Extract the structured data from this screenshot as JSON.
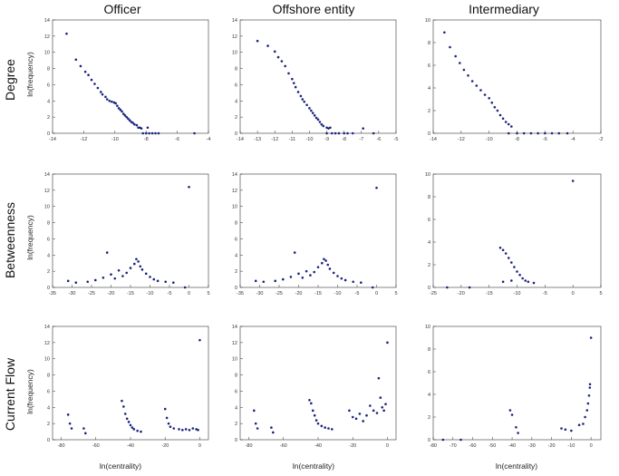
{
  "figure": {
    "columns": [
      "Officer",
      "Offshore entity",
      "Intermediary"
    ],
    "rows": [
      "Degree",
      "Betweenness",
      "Current Flow"
    ],
    "ylabel": "ln(frequency)",
    "xlabel": "ln(centrality)"
  },
  "chart_data": [
    {
      "id": "officer-degree",
      "type": "scatter",
      "title": "Officer / Degree",
      "xlim": [
        -14,
        -4
      ],
      "ylim": [
        0,
        14
      ],
      "xticks": [
        -14,
        -12,
        -10,
        -8,
        -6,
        -4
      ],
      "yticks": [
        0,
        2,
        4,
        6,
        8,
        10,
        12,
        14
      ],
      "points": [
        [
          -13.1,
          12.3
        ],
        [
          -12.5,
          9.1
        ],
        [
          -12.2,
          8.3
        ],
        [
          -11.9,
          7.6
        ],
        [
          -11.7,
          7.2
        ],
        [
          -11.5,
          6.6
        ],
        [
          -11.3,
          6.1
        ],
        [
          -11.1,
          5.6
        ],
        [
          -10.9,
          5.1
        ],
        [
          -10.8,
          4.8
        ],
        [
          -10.6,
          4.5
        ],
        [
          -10.5,
          4.2
        ],
        [
          -10.35,
          4.0
        ],
        [
          -10.2,
          3.9
        ],
        [
          -10.05,
          3.8
        ],
        [
          -9.95,
          3.7
        ],
        [
          -9.85,
          3.4
        ],
        [
          -9.75,
          3.1
        ],
        [
          -9.65,
          2.9
        ],
        [
          -9.55,
          2.7
        ],
        [
          -9.45,
          2.4
        ],
        [
          -9.35,
          2.2
        ],
        [
          -9.25,
          2.0
        ],
        [
          -9.15,
          1.8
        ],
        [
          -9.05,
          1.6
        ],
        [
          -8.95,
          1.4
        ],
        [
          -8.85,
          1.3
        ],
        [
          -8.75,
          1.1
        ],
        [
          -8.6,
          1.0
        ],
        [
          -8.5,
          0.7
        ],
        [
          -8.4,
          0.7
        ],
        [
          -8.3,
          0.6
        ],
        [
          -7.9,
          0.7
        ],
        [
          -8.2,
          0
        ],
        [
          -8.0,
          0
        ],
        [
          -7.8,
          0
        ],
        [
          -7.6,
          0
        ],
        [
          -7.4,
          0
        ],
        [
          -7.2,
          0
        ],
        [
          -4.9,
          0
        ]
      ]
    },
    {
      "id": "offshore-degree",
      "type": "scatter",
      "title": "Offshore entity / Degree",
      "xlim": [
        -14,
        -5
      ],
      "ylim": [
        0,
        14
      ],
      "xticks": [
        -14,
        -13,
        -12,
        -11,
        -10,
        -9,
        -8,
        -7,
        -6,
        -5
      ],
      "yticks": [
        0,
        2,
        4,
        6,
        8,
        10,
        12,
        14
      ],
      "points": [
        [
          -13.0,
          11.4
        ],
        [
          -12.4,
          10.8
        ],
        [
          -12.0,
          10.1
        ],
        [
          -11.8,
          9.4
        ],
        [
          -11.6,
          8.9
        ],
        [
          -11.4,
          8.3
        ],
        [
          -11.2,
          7.4
        ],
        [
          -11.0,
          6.7
        ],
        [
          -10.9,
          6.2
        ],
        [
          -10.8,
          5.7
        ],
        [
          -10.65,
          5.1
        ],
        [
          -10.5,
          4.6
        ],
        [
          -10.4,
          4.2
        ],
        [
          -10.3,
          3.9
        ],
        [
          -10.15,
          3.5
        ],
        [
          -10.0,
          3.1
        ],
        [
          -9.9,
          2.8
        ],
        [
          -9.8,
          2.5
        ],
        [
          -9.7,
          2.2
        ],
        [
          -9.6,
          1.9
        ],
        [
          -9.5,
          1.7
        ],
        [
          -9.4,
          1.4
        ],
        [
          -9.3,
          1.1
        ],
        [
          -9.2,
          0.9
        ],
        [
          -9.0,
          0.7
        ],
        [
          -8.9,
          0.6
        ],
        [
          -8.8,
          0.7
        ],
        [
          -9.0,
          0
        ],
        [
          -8.7,
          0
        ],
        [
          -8.5,
          0
        ],
        [
          -8.3,
          0
        ],
        [
          -8.0,
          0
        ],
        [
          -7.8,
          0
        ],
        [
          -7.5,
          0
        ],
        [
          -6.9,
          0.6
        ],
        [
          -6.3,
          0
        ]
      ]
    },
    {
      "id": "intermediary-degree",
      "type": "scatter",
      "title": "Intermediary / Degree",
      "xlim": [
        -14,
        -2
      ],
      "ylim": [
        0,
        10
      ],
      "xticks": [
        -14,
        -12,
        -10,
        -8,
        -6,
        -4,
        -2
      ],
      "yticks": [
        0,
        2,
        4,
        6,
        8,
        10
      ],
      "points": [
        [
          -13.2,
          8.9
        ],
        [
          -12.8,
          7.6
        ],
        [
          -12.4,
          6.8
        ],
        [
          -12.1,
          6.2
        ],
        [
          -11.8,
          5.6
        ],
        [
          -11.5,
          5.1
        ],
        [
          -11.2,
          4.6
        ],
        [
          -10.9,
          4.2
        ],
        [
          -10.6,
          3.8
        ],
        [
          -10.3,
          3.4
        ],
        [
          -10.0,
          3.1
        ],
        [
          -9.8,
          2.7
        ],
        [
          -9.6,
          2.3
        ],
        [
          -9.4,
          2.0
        ],
        [
          -9.2,
          1.6
        ],
        [
          -9.0,
          1.3
        ],
        [
          -8.8,
          1.0
        ],
        [
          -8.6,
          0.8
        ],
        [
          -8.4,
          0.6
        ],
        [
          -8.6,
          0
        ],
        [
          -8.0,
          0
        ],
        [
          -7.5,
          0
        ],
        [
          -7.0,
          0
        ],
        [
          -6.5,
          0
        ],
        [
          -6.0,
          0
        ],
        [
          -5.5,
          0
        ],
        [
          -5.0,
          0
        ],
        [
          -4.4,
          0
        ]
      ]
    },
    {
      "id": "officer-betweenness",
      "type": "scatter",
      "title": "Officer / Betweenness",
      "xlim": [
        -35,
        5
      ],
      "ylim": [
        0,
        14
      ],
      "xticks": [
        -35,
        -30,
        -25,
        -20,
        -15,
        -10,
        -5,
        0,
        5
      ],
      "yticks": [
        0,
        2,
        4,
        6,
        8,
        10,
        12,
        14
      ],
      "points": [
        [
          -31,
          0.8
        ],
        [
          -29,
          0.6
        ],
        [
          -26,
          0.7
        ],
        [
          -24,
          0.9
        ],
        [
          -22,
          1.2
        ],
        [
          -21,
          4.3
        ],
        [
          -20,
          1.6
        ],
        [
          -19,
          1.1
        ],
        [
          -18,
          2.1
        ],
        [
          -17,
          1.4
        ],
        [
          -16,
          1.8
        ],
        [
          -15,
          2.4
        ],
        [
          -14,
          2.9
        ],
        [
          -13.5,
          3.5
        ],
        [
          -13,
          3.2
        ],
        [
          -12.5,
          2.6
        ],
        [
          -12,
          2.2
        ],
        [
          -11,
          1.7
        ],
        [
          -10,
          1.3
        ],
        [
          -9,
          1.0
        ],
        [
          -8,
          0.8
        ],
        [
          -6,
          0.7
        ],
        [
          -4,
          0.6
        ],
        [
          -1,
          0
        ],
        [
          0,
          12.4
        ]
      ]
    },
    {
      "id": "offshore-betweenness",
      "type": "scatter",
      "title": "Offshore entity / Betweenness",
      "xlim": [
        -35,
        5
      ],
      "ylim": [
        0,
        14
      ],
      "xticks": [
        -35,
        -30,
        -25,
        -20,
        -15,
        -10,
        -5,
        0,
        5
      ],
      "yticks": [
        0,
        2,
        4,
        6,
        8,
        10,
        12,
        14
      ],
      "points": [
        [
          -31,
          0.8
        ],
        [
          -29,
          0.7
        ],
        [
          -26,
          0.8
        ],
        [
          -24,
          1.0
        ],
        [
          -22,
          1.3
        ],
        [
          -21,
          4.3
        ],
        [
          -20,
          1.7
        ],
        [
          -19,
          1.2
        ],
        [
          -18,
          2.0
        ],
        [
          -17,
          1.5
        ],
        [
          -16,
          1.9
        ],
        [
          -15,
          2.5
        ],
        [
          -14,
          3.0
        ],
        [
          -13.5,
          3.5
        ],
        [
          -13,
          3.3
        ],
        [
          -12.5,
          2.8
        ],
        [
          -12,
          2.3
        ],
        [
          -11,
          1.8
        ],
        [
          -10,
          1.4
        ],
        [
          -9,
          1.1
        ],
        [
          -8,
          0.9
        ],
        [
          -6,
          0.7
        ],
        [
          -4,
          0.6
        ],
        [
          -1,
          0
        ],
        [
          0,
          12.3
        ]
      ]
    },
    {
      "id": "intermediary-betweenness",
      "type": "scatter",
      "title": "Intermediary / Betweenness",
      "xlim": [
        -25,
        5
      ],
      "ylim": [
        0,
        10
      ],
      "xticks": [
        -25,
        -20,
        -15,
        -10,
        -5,
        0,
        5
      ],
      "yticks": [
        0,
        2,
        4,
        6,
        8,
        10
      ],
      "points": [
        [
          -22.5,
          0
        ],
        [
          -18.5,
          0
        ],
        [
          -13.0,
          3.5
        ],
        [
          -12.5,
          3.3
        ],
        [
          -12.0,
          3.0
        ],
        [
          -11.5,
          2.6
        ],
        [
          -11.0,
          2.2
        ],
        [
          -10.5,
          1.8
        ],
        [
          -10.0,
          1.4
        ],
        [
          -9.5,
          1.1
        ],
        [
          -9.0,
          0.8
        ],
        [
          -8.5,
          0.6
        ],
        [
          -12.5,
          0.5
        ],
        [
          -11,
          0.6
        ],
        [
          -8,
          0.5
        ],
        [
          -7,
          0.4
        ],
        [
          0,
          9.4
        ]
      ]
    },
    {
      "id": "officer-current-flow",
      "type": "scatter",
      "title": "Officer / Current Flow",
      "xlim": [
        -85,
        5
      ],
      "ylim": [
        0,
        14
      ],
      "xticks": [
        -80,
        -60,
        -40,
        -20,
        0
      ],
      "yticks": [
        0,
        2,
        4,
        6,
        8,
        10,
        12,
        14
      ],
      "points": [
        [
          -76,
          3.1
        ],
        [
          -75,
          2.0
        ],
        [
          -74,
          1.4
        ],
        [
          -67,
          1.4
        ],
        [
          -66,
          0.8
        ],
        [
          -45,
          4.8
        ],
        [
          -44,
          4.1
        ],
        [
          -43,
          3.2
        ],
        [
          -42,
          2.6
        ],
        [
          -41,
          2.2
        ],
        [
          -40,
          1.8
        ],
        [
          -39,
          1.5
        ],
        [
          -38,
          1.3
        ],
        [
          -36,
          1.1
        ],
        [
          -34,
          1.0
        ],
        [
          -20,
          3.8
        ],
        [
          -19,
          2.7
        ],
        [
          -18,
          2.0
        ],
        [
          -17,
          1.6
        ],
        [
          -15,
          1.4
        ],
        [
          -12,
          1.3
        ],
        [
          -10,
          1.2
        ],
        [
          -8,
          1.3
        ],
        [
          -6,
          1.2
        ],
        [
          -4,
          1.4
        ],
        [
          -2,
          1.3
        ],
        [
          -1,
          1.2
        ],
        [
          0,
          12.3
        ]
      ]
    },
    {
      "id": "offshore-current-flow",
      "type": "scatter",
      "title": "Offshore entity / Current Flow",
      "xlim": [
        -85,
        5
      ],
      "ylim": [
        0,
        14
      ],
      "xticks": [
        -80,
        -60,
        -40,
        -20,
        0
      ],
      "yticks": [
        0,
        2,
        4,
        6,
        8,
        10,
        12,
        14
      ],
      "points": [
        [
          -77,
          3.6
        ],
        [
          -76,
          2.0
        ],
        [
          -75,
          1.4
        ],
        [
          -67,
          1.5
        ],
        [
          -66,
          0.9
        ],
        [
          -45,
          4.9
        ],
        [
          -44,
          4.5
        ],
        [
          -43,
          3.6
        ],
        [
          -42,
          3.0
        ],
        [
          -41,
          2.4
        ],
        [
          -40,
          2.0
        ],
        [
          -38,
          1.7
        ],
        [
          -36,
          1.5
        ],
        [
          -34,
          1.4
        ],
        [
          -32,
          1.3
        ],
        [
          -22,
          3.6
        ],
        [
          -20,
          2.8
        ],
        [
          -18,
          2.6
        ],
        [
          -16,
          3.2
        ],
        [
          -14,
          2.3
        ],
        [
          -12,
          3.0
        ],
        [
          -10,
          4.2
        ],
        [
          -8,
          3.6
        ],
        [
          -6,
          3.3
        ],
        [
          -5,
          7.6
        ],
        [
          -4,
          5.2
        ],
        [
          -3,
          4.0
        ],
        [
          -2,
          3.6
        ],
        [
          -1,
          4.4
        ],
        [
          0,
          12.0
        ]
      ]
    },
    {
      "id": "intermediary-current-flow",
      "type": "scatter",
      "title": "Intermediary / Current Flow",
      "xlim": [
        -80,
        5
      ],
      "ylim": [
        0,
        10
      ],
      "xticks": [
        -80,
        -70,
        -60,
        -50,
        -40,
        -30,
        -20,
        -10,
        0
      ],
      "yticks": [
        0,
        2,
        4,
        6,
        8,
        10
      ],
      "points": [
        [
          -75,
          0
        ],
        [
          -66,
          0
        ],
        [
          -41,
          2.6
        ],
        [
          -40,
          2.2
        ],
        [
          -38,
          1.1
        ],
        [
          -37,
          0.6
        ],
        [
          -15,
          1.0
        ],
        [
          -13,
          0.9
        ],
        [
          -10,
          0.8
        ],
        [
          -6,
          1.3
        ],
        [
          -4,
          1.4
        ],
        [
          -3,
          2.0
        ],
        [
          -2,
          2.6
        ],
        [
          -1.5,
          3.2
        ],
        [
          -1,
          3.9
        ],
        [
          -0.6,
          4.6
        ],
        [
          0,
          9.0
        ],
        [
          -0.5,
          4.9
        ]
      ]
    }
  ]
}
